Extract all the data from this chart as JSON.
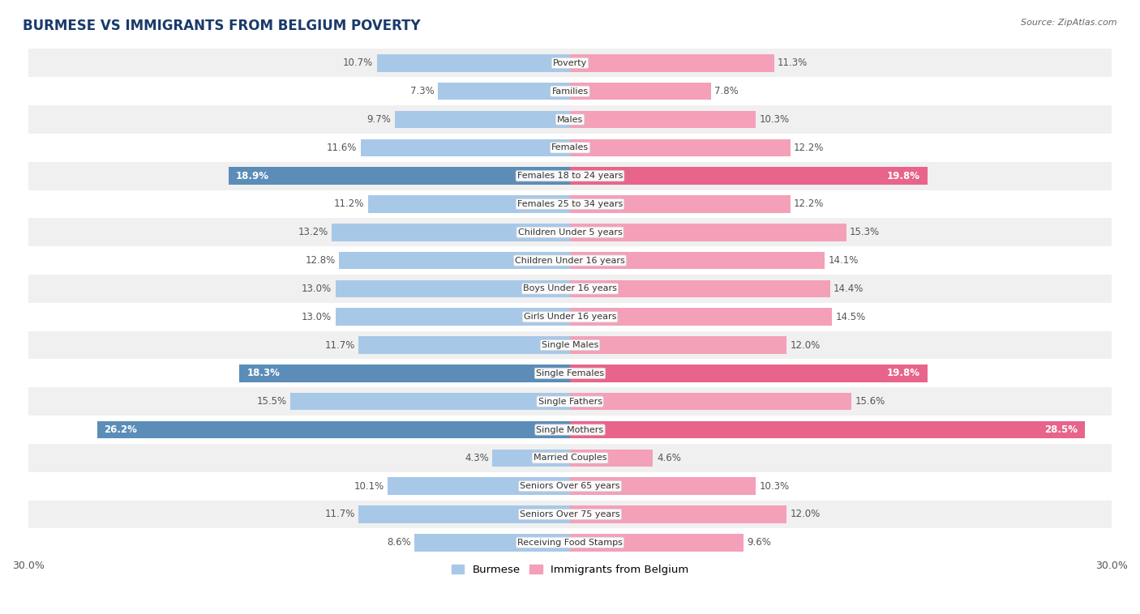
{
  "title": "BURMESE VS IMMIGRANTS FROM BELGIUM POVERTY",
  "source": "Source: ZipAtlas.com",
  "categories": [
    "Poverty",
    "Families",
    "Males",
    "Females",
    "Females 18 to 24 years",
    "Females 25 to 34 years",
    "Children Under 5 years",
    "Children Under 16 years",
    "Boys Under 16 years",
    "Girls Under 16 years",
    "Single Males",
    "Single Females",
    "Single Fathers",
    "Single Mothers",
    "Married Couples",
    "Seniors Over 65 years",
    "Seniors Over 75 years",
    "Receiving Food Stamps"
  ],
  "burmese": [
    10.7,
    7.3,
    9.7,
    11.6,
    18.9,
    11.2,
    13.2,
    12.8,
    13.0,
    13.0,
    11.7,
    18.3,
    15.5,
    26.2,
    4.3,
    10.1,
    11.7,
    8.6
  ],
  "belgium": [
    11.3,
    7.8,
    10.3,
    12.2,
    19.8,
    12.2,
    15.3,
    14.1,
    14.4,
    14.5,
    12.0,
    19.8,
    15.6,
    28.5,
    4.6,
    10.3,
    12.0,
    9.6
  ],
  "burmese_color": "#a8c8e8",
  "belgium_color": "#f4a0b8",
  "highlight_burmese_color": "#5b8db8",
  "highlight_belgium_color": "#e8648a",
  "highlight_rows": [
    4,
    11,
    13
  ],
  "axis_max": 30.0,
  "bar_height": 0.62,
  "background_color": "#ffffff",
  "row_colors": [
    "#f0f0f0",
    "#ffffff"
  ],
  "title_color": "#1a3a6b",
  "label_fontsize": 8.5,
  "highlight_label_color": "#ffffff",
  "normal_label_color": "#555555"
}
